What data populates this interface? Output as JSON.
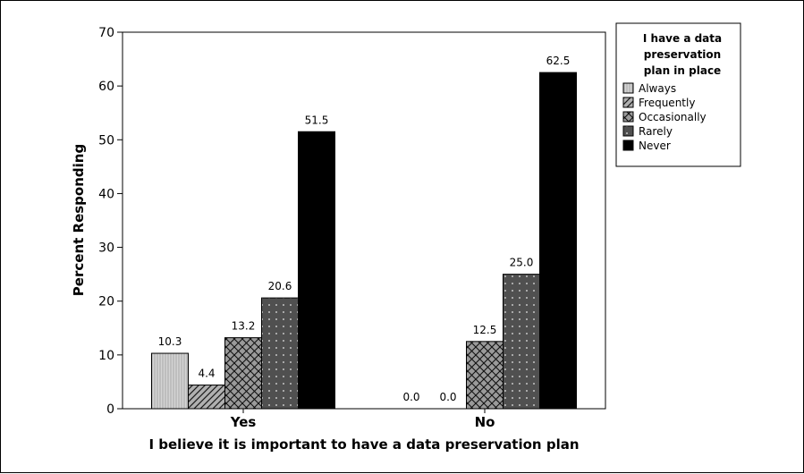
{
  "chart_data": {
    "type": "bar",
    "categories": [
      "Yes",
      "No"
    ],
    "series": [
      {
        "name": "Always",
        "values": [
          10.3,
          0.0
        ],
        "labels": [
          "10.3",
          "0.0"
        ],
        "color": "#c8c8c8",
        "pattern": "vlines"
      },
      {
        "name": "Frequently",
        "values": [
          4.4,
          0.0
        ],
        "labels": [
          "4.4",
          "0.0"
        ],
        "color": "#b8b8b8",
        "pattern": "diag"
      },
      {
        "name": "Occasionally",
        "values": [
          13.2,
          12.5
        ],
        "labels": [
          "13.2",
          "12.5"
        ],
        "color": "#a0a0a0",
        "pattern": "cross"
      },
      {
        "name": "Rarely",
        "values": [
          20.6,
          25.0
        ],
        "labels": [
          "20.6",
          "25.0"
        ],
        "color": "#555555",
        "pattern": "dots"
      },
      {
        "name": "Never",
        "values": [
          51.5,
          62.5
        ],
        "labels": [
          "51.5",
          "62.5"
        ],
        "color": "#000000",
        "pattern": "solid"
      }
    ],
    "title": "",
    "xlabel": "I believe it is important to have a data preservation plan",
    "ylabel": "Percent Responding",
    "ylim": [
      0,
      70
    ],
    "yticks": [
      0,
      10,
      20,
      30,
      40,
      50,
      60,
      70
    ],
    "grid": false,
    "legend": {
      "title_lines": [
        "I have a data",
        "preservation",
        "plan in place"
      ],
      "placement": "right"
    }
  }
}
